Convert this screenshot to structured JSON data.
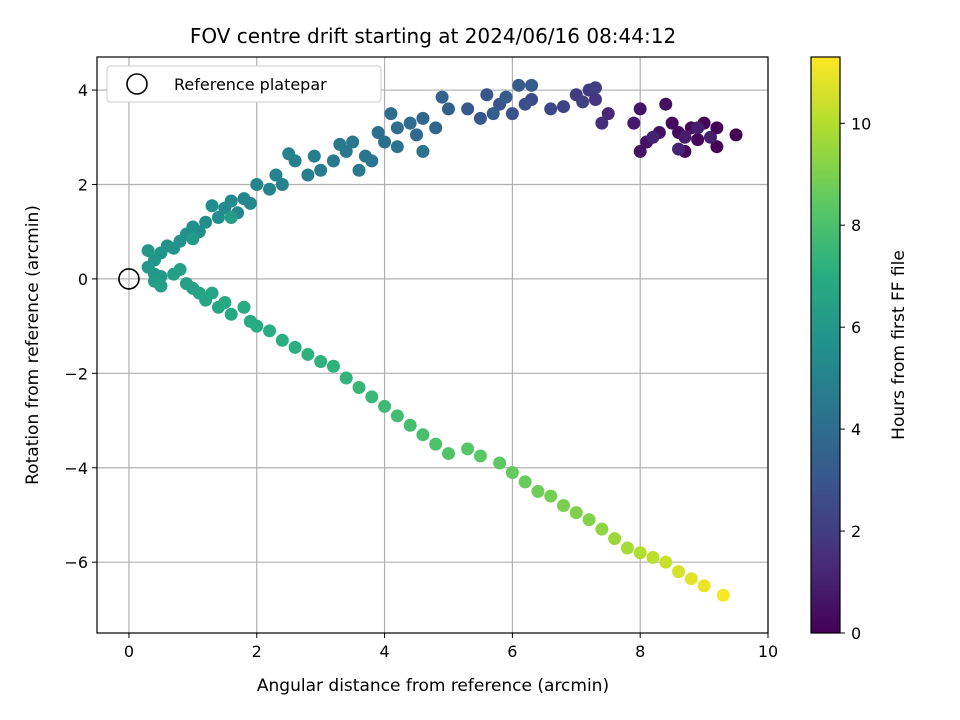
{
  "chart_data": {
    "type": "scatter",
    "title": "FOV centre drift starting at 2024/06/16 08:44:12",
    "xlabel": "Angular distance from reference (arcmin)",
    "ylabel": "Rotation from reference (arcmin)",
    "xlim": [
      -0.5,
      10
    ],
    "ylim": [
      -7.5,
      4.7
    ],
    "xticks": [
      0,
      2,
      4,
      6,
      8,
      10
    ],
    "yticks": [
      -6,
      -4,
      -2,
      0,
      2,
      4
    ],
    "grid": true,
    "legend": {
      "placement": "top-left",
      "entries": [
        "Reference platepar"
      ]
    },
    "reference_point": {
      "x": 0,
      "y": 0,
      "label": "Reference platepar"
    },
    "colorbar": {
      "label": "Hours from first FF file",
      "colormap": "viridis",
      "range": [
        0,
        11.3
      ],
      "ticks": [
        0,
        2,
        4,
        6,
        8,
        10
      ]
    },
    "series": [
      {
        "columns": [
          "x",
          "y",
          "hours"
        ],
        "points": [
          [
            9.5,
            3.05,
            0.0
          ],
          [
            9.2,
            2.8,
            0.05
          ],
          [
            9.2,
            3.2,
            0.1
          ],
          [
            9.0,
            3.3,
            0.15
          ],
          [
            8.9,
            2.95,
            0.2
          ],
          [
            8.8,
            3.2,
            0.25
          ],
          [
            8.7,
            2.7,
            0.3
          ],
          [
            8.6,
            3.1,
            0.35
          ],
          [
            8.5,
            3.3,
            0.4
          ],
          [
            8.4,
            3.7,
            0.45
          ],
          [
            8.3,
            3.1,
            0.5
          ],
          [
            8.1,
            2.9,
            0.55
          ],
          [
            8.0,
            2.7,
            0.6
          ],
          [
            8.0,
            3.6,
            0.7
          ],
          [
            7.9,
            3.3,
            0.8
          ],
          [
            8.7,
            3.0,
            0.9
          ],
          [
            8.9,
            3.2,
            1.0
          ],
          [
            9.1,
            3.0,
            1.05
          ],
          [
            8.2,
            3.0,
            1.1
          ],
          [
            8.6,
            2.75,
            1.15
          ],
          [
            7.5,
            3.5,
            1.3
          ],
          [
            7.4,
            3.3,
            1.5
          ],
          [
            7.3,
            3.8,
            1.7
          ],
          [
            7.2,
            4.0,
            1.9
          ],
          [
            7.0,
            3.9,
            2.0
          ],
          [
            7.3,
            4.05,
            2.1
          ],
          [
            7.1,
            3.75,
            2.2
          ],
          [
            6.8,
            3.65,
            2.3
          ],
          [
            6.6,
            3.6,
            2.45
          ],
          [
            6.3,
            3.8,
            2.6
          ],
          [
            6.2,
            3.7,
            2.75
          ],
          [
            6.0,
            3.5,
            2.9
          ],
          [
            5.8,
            3.7,
            3.0
          ],
          [
            5.6,
            3.9,
            3.05
          ],
          [
            5.5,
            3.4,
            3.1
          ],
          [
            5.3,
            3.6,
            3.15
          ],
          [
            6.3,
            4.1,
            3.25
          ],
          [
            6.1,
            4.1,
            3.3
          ],
          [
            5.9,
            3.85,
            3.35
          ],
          [
            5.7,
            3.5,
            3.4
          ],
          [
            5.0,
            3.6,
            3.5
          ],
          [
            4.9,
            3.85,
            3.6
          ],
          [
            4.8,
            3.2,
            3.7
          ],
          [
            4.6,
            3.4,
            3.8
          ],
          [
            4.5,
            3.05,
            3.9
          ],
          [
            4.4,
            3.3,
            4.0
          ],
          [
            4.2,
            3.2,
            4.05
          ],
          [
            4.1,
            3.5,
            4.1
          ],
          [
            4.0,
            2.9,
            4.15
          ],
          [
            3.9,
            3.1,
            4.2
          ],
          [
            4.6,
            2.7,
            4.25
          ],
          [
            4.2,
            2.8,
            4.3
          ],
          [
            3.8,
            2.5,
            4.4
          ],
          [
            3.7,
            2.6,
            4.45
          ],
          [
            3.5,
            2.9,
            4.5
          ],
          [
            3.4,
            2.7,
            4.55
          ],
          [
            3.3,
            2.85,
            4.6
          ],
          [
            3.2,
            2.5,
            4.65
          ],
          [
            3.6,
            2.3,
            4.7
          ],
          [
            3.0,
            2.3,
            4.75
          ],
          [
            2.9,
            2.6,
            4.8
          ],
          [
            2.8,
            2.2,
            4.85
          ],
          [
            2.6,
            2.5,
            4.9
          ],
          [
            2.5,
            2.65,
            4.95
          ],
          [
            2.4,
            2.0,
            5.0
          ],
          [
            2.3,
            2.2,
            5.05
          ],
          [
            2.2,
            1.9,
            5.1
          ],
          [
            2.0,
            2.0,
            5.15
          ],
          [
            1.9,
            1.6,
            5.2
          ],
          [
            1.8,
            1.7,
            5.25
          ],
          [
            1.7,
            1.4,
            5.3
          ],
          [
            1.6,
            1.65,
            5.35
          ],
          [
            1.5,
            1.5,
            5.4
          ],
          [
            1.4,
            1.3,
            5.45
          ],
          [
            1.3,
            1.55,
            5.5
          ],
          [
            1.2,
            1.2,
            5.55
          ],
          [
            1.1,
            1.0,
            5.6
          ],
          [
            1.0,
            1.1,
            5.65
          ],
          [
            0.9,
            0.95,
            5.7
          ],
          [
            0.8,
            0.8,
            5.75
          ],
          [
            0.7,
            0.65,
            5.8
          ],
          [
            0.6,
            0.7,
            5.85
          ],
          [
            0.5,
            0.55,
            5.9
          ],
          [
            0.4,
            0.4,
            5.95
          ],
          [
            0.3,
            0.6,
            6.0
          ],
          [
            0.3,
            0.25,
            6.05
          ],
          [
            0.4,
            0.1,
            6.1
          ],
          [
            0.5,
            0.05,
            6.15
          ],
          [
            1.0,
            0.85,
            6.2
          ],
          [
            1.6,
            1.3,
            6.25
          ],
          [
            0.4,
            -0.05,
            6.3
          ],
          [
            0.5,
            -0.15,
            6.35
          ],
          [
            0.7,
            0.1,
            6.4
          ],
          [
            0.8,
            0.2,
            6.45
          ],
          [
            0.9,
            -0.1,
            6.5
          ],
          [
            1.0,
            -0.2,
            6.55
          ],
          [
            1.1,
            -0.3,
            6.6
          ],
          [
            1.2,
            -0.45,
            6.65
          ],
          [
            1.3,
            -0.3,
            6.7
          ],
          [
            1.4,
            -0.6,
            6.75
          ],
          [
            1.5,
            -0.5,
            6.8
          ],
          [
            1.6,
            -0.75,
            6.85
          ],
          [
            1.8,
            -0.6,
            6.9
          ],
          [
            1.9,
            -0.9,
            6.95
          ],
          [
            2.0,
            -1.0,
            7.0
          ],
          [
            2.2,
            -1.1,
            7.05
          ],
          [
            2.4,
            -1.3,
            7.1
          ],
          [
            2.6,
            -1.45,
            7.15
          ],
          [
            2.8,
            -1.6,
            7.2
          ],
          [
            3.0,
            -1.75,
            7.25
          ],
          [
            3.2,
            -1.85,
            7.3
          ],
          [
            3.4,
            -2.1,
            7.4
          ],
          [
            3.6,
            -2.3,
            7.5
          ],
          [
            3.8,
            -2.5,
            7.6
          ],
          [
            4.0,
            -2.7,
            7.7
          ],
          [
            4.2,
            -2.9,
            7.8
          ],
          [
            4.4,
            -3.1,
            7.9
          ],
          [
            4.6,
            -3.3,
            8.0
          ],
          [
            4.8,
            -3.5,
            8.1
          ],
          [
            5.0,
            -3.7,
            8.2
          ],
          [
            5.3,
            -3.6,
            8.3
          ],
          [
            5.5,
            -3.75,
            8.4
          ],
          [
            5.8,
            -3.9,
            8.5
          ],
          [
            6.0,
            -4.1,
            8.6
          ],
          [
            6.2,
            -4.3,
            8.7
          ],
          [
            6.4,
            -4.5,
            8.8
          ],
          [
            6.6,
            -4.6,
            8.9
          ],
          [
            6.8,
            -4.8,
            9.0
          ],
          [
            7.0,
            -4.95,
            9.1
          ],
          [
            7.2,
            -5.1,
            9.2
          ],
          [
            7.4,
            -5.3,
            9.4
          ],
          [
            7.6,
            -5.5,
            9.6
          ],
          [
            7.8,
            -5.7,
            9.8
          ],
          [
            8.0,
            -5.8,
            10.0
          ],
          [
            8.2,
            -5.9,
            10.2
          ],
          [
            8.4,
            -6.0,
            10.4
          ],
          [
            8.6,
            -6.2,
            10.6
          ],
          [
            8.8,
            -6.35,
            10.8
          ],
          [
            9.0,
            -6.5,
            11.0
          ],
          [
            9.3,
            -6.7,
            11.2
          ]
        ]
      }
    ]
  }
}
